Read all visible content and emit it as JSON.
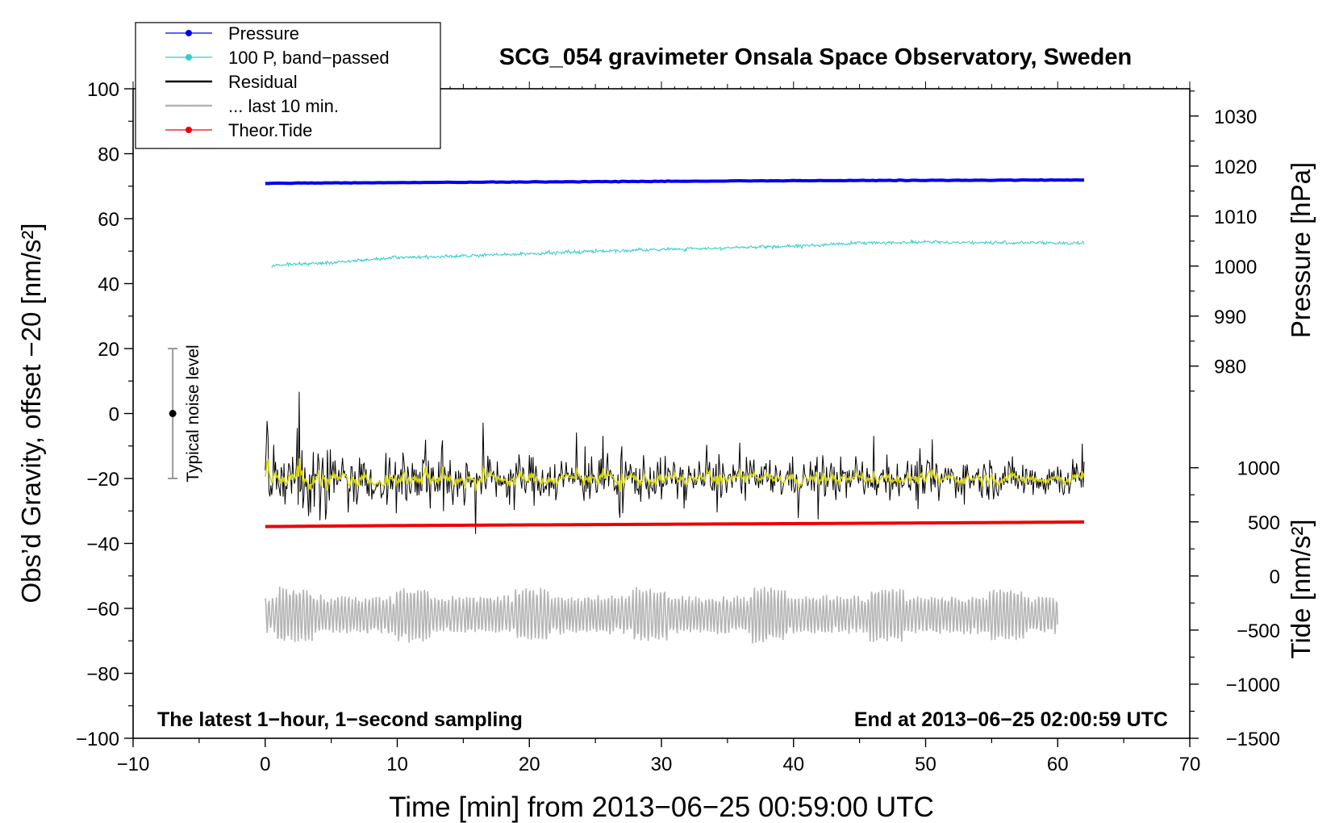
{
  "chart_data": {
    "type": "line",
    "title": "SCG_054 gravimeter Onsala Space Observatory, Sweden",
    "xlabel": "Time [min] from 2013−06−25 00:59:00 UTC",
    "ylabel_left": "Obs’d Gravity, offset −20 [nm/s²]",
    "ylabel_right_top": "Pressure [hPa]",
    "ylabel_right_bottom": "Tide [nm/s²]",
    "xlim": [
      -10,
      70
    ],
    "ylim": [
      -100,
      100
    ],
    "x_ticks": [
      -10,
      0,
      10,
      20,
      30,
      40,
      50,
      60,
      70
    ],
    "x_tick_labels": [
      "−10",
      "0",
      "10",
      "20",
      "30",
      "40",
      "50",
      "60",
      "70"
    ],
    "y_ticks": [
      100,
      80,
      60,
      40,
      20,
      0,
      -20,
      -40,
      -60,
      -80,
      -100
    ],
    "y_tick_labels": [
      "100",
      "80",
      "60",
      "40",
      "20",
      "0",
      "−20",
      "−40",
      "−60",
      "−80",
      "−100"
    ],
    "pressure_axis": {
      "ticks": [
        1030,
        1020,
        1010,
        1000,
        990,
        980
      ],
      "tick_labels": [
        "1030",
        "1020",
        "1010",
        "1000",
        "990",
        "980"
      ],
      "map": {
        "value_a": 1000,
        "left_a": 45.4,
        "value_b": 1030,
        "left_b": 91.6
      }
    },
    "tide_axis": {
      "ticks": [
        1000,
        500,
        0,
        -500,
        -1000,
        -1500
      ],
      "tick_labels": [
        "1000",
        "500",
        "0",
        "−500",
        "−1000",
        "−1500"
      ],
      "map": {
        "value_a": 1000,
        "left_a": -16.7,
        "value_b": -1500,
        "left_b": -100
      }
    },
    "series": [
      {
        "name": "Pressure",
        "color": "#0000ee",
        "x": [
          0,
          10,
          20,
          30,
          40,
          50,
          62
        ],
        "y": [
          70.9,
          71.1,
          71.3,
          71.5,
          71.7,
          71.8,
          71.9
        ]
      },
      {
        "name": "100 P, band−passed",
        "color": "#33cccc",
        "x": [
          0,
          5,
          10,
          15,
          20,
          25,
          30,
          35,
          40,
          45,
          50,
          55,
          62
        ],
        "y": [
          45.5,
          46.5,
          48.0,
          48.5,
          49.2,
          50.0,
          50.5,
          51.0,
          51.5,
          52.5,
          52.8,
          52.6,
          52.5
        ]
      },
      {
        "name": "Residual",
        "color": "#000000",
        "x": [
          0,
          62
        ],
        "y": [
          -20,
          -20
        ]
      },
      {
        "name": "... last 10 min.",
        "color": "#b4b4b4",
        "x": [
          0,
          60
        ],
        "y": [
          -62,
          -62
        ]
      },
      {
        "name": "Theor.Tide",
        "color": "#ee0000",
        "x": [
          0,
          10,
          20,
          30,
          40,
          50,
          62
        ],
        "y": [
          -34.8,
          -34.5,
          -34.3,
          -34.1,
          -33.9,
          -33.7,
          -33.4
        ]
      }
    ],
    "legend": {
      "position": "top-left",
      "entries": [
        {
          "label": "Pressure",
          "color": "#0000ee",
          "marker": true
        },
        {
          "label": "100 P, band−passed",
          "color": "#33cccc",
          "marker": true
        },
        {
          "label": "Residual",
          "color": "#000000",
          "marker": false
        },
        {
          "label": "... last 10 min.",
          "color": "#b4b4b4",
          "marker": false
        },
        {
          "label": "Theor.Tide",
          "color": "#ee0000",
          "marker": true
        }
      ]
    },
    "noise_bar": {
      "x": -7,
      "y_low": -20,
      "y_high": 20,
      "y_mid": 0,
      "label": "Typical noise level"
    },
    "annotations": {
      "bottom_left": "The latest 1−hour, 1−second sampling",
      "bottom_right": "End at 2013−06−25 02:00:59 UTC"
    }
  }
}
